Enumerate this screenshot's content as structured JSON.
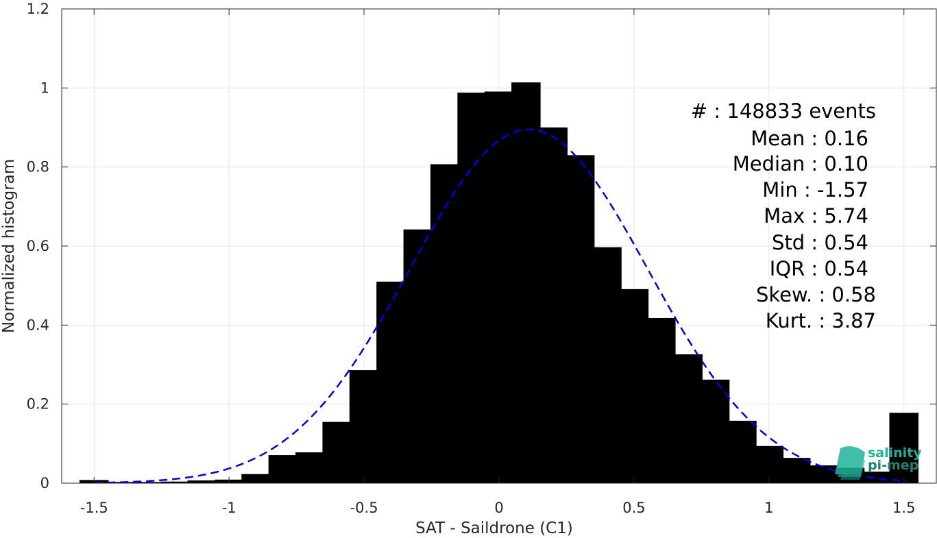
{
  "chart_data": {
    "type": "bar",
    "xlabel": "SAT - Saildrone (C1)",
    "ylabel": "Normalized histogram",
    "xlim": [
      -1.62,
      1.62
    ],
    "ylim": [
      0,
      1.2
    ],
    "xticks": [
      -1.5,
      -1,
      -0.5,
      0,
      0.5,
      1,
      1.5
    ],
    "xtick_labels": [
      "-1.5",
      "-1",
      "-0.5",
      "0",
      "0.5",
      "1",
      "1.5"
    ],
    "yticks": [
      0,
      0.2,
      0.4,
      0.6,
      0.8,
      1,
      1.2
    ],
    "ytick_labels": [
      "0",
      "0.2",
      "0.4",
      "0.6",
      "0.8",
      "1",
      "1.2"
    ],
    "grid": true,
    "bar_color": "#000000",
    "curve_color": "#0000dd",
    "bars": {
      "x": [
        -1.5,
        -1.4,
        -1.3,
        -1.2,
        -1.1,
        -1.0,
        -0.9,
        -0.8,
        -0.7,
        -0.6,
        -0.5,
        -0.4,
        -0.3,
        -0.2,
        -0.1,
        0.0,
        0.1,
        0.2,
        0.3,
        0.4,
        0.5,
        0.6,
        0.7,
        0.8,
        0.9,
        1.0,
        1.1,
        1.2,
        1.3,
        1.4,
        1.5
      ],
      "values": [
        0.008,
        0.003,
        0.003,
        0.004,
        0.007,
        0.009,
        0.023,
        0.071,
        0.078,
        0.155,
        0.286,
        0.51,
        0.642,
        0.807,
        0.988,
        0.991,
        1.014,
        0.9,
        0.83,
        0.597,
        0.491,
        0.418,
        0.326,
        0.262,
        0.158,
        0.094,
        0.064,
        0.045,
        0.039,
        0.029,
        0.178
      ]
    },
    "fit_curve": {
      "style": "dashed",
      "mean": 0.11,
      "std": 0.44,
      "peak": 0.895
    }
  },
  "stats": {
    "lines": [
      "#  : 148833 events",
      "Mean : 0.16",
      "Median : 0.10",
      "Min : -1.57",
      "Max : 5.74",
      "Std : 0.54",
      "IQR : 0.54",
      "Skew. : 0.58",
      "Kurt. : 3.87"
    ]
  },
  "logo": {
    "line1": "salinity",
    "line2": "pi-mep",
    "color1": "#1fb39a",
    "color2": "#1f7f70"
  }
}
